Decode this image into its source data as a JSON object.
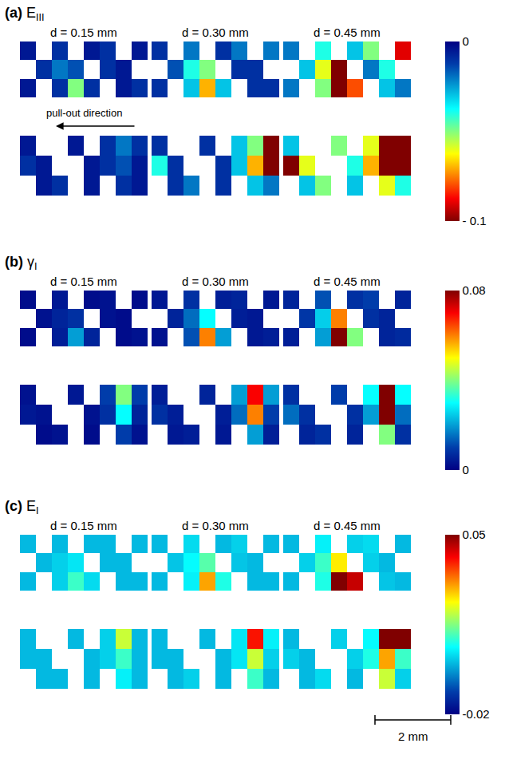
{
  "chart_data": [
    {
      "type": "heatmap",
      "panel": "(a)",
      "symbol": "E",
      "subscript": "III",
      "color": "jet_r",
      "tick_labels": false,
      "columns": [
        "d = 0.15 mm",
        "d = 0.30 mm",
        "d = 0.45 mm"
      ],
      "zlim": [
        -0.1,
        0
      ],
      "zticks": [
        0,
        {
          "value": -0.1,
          "label": "- 0.1"
        }
      ],
      "cells": [
        [
          [
            [
              -0.005,
              null,
              -0.01,
              null,
              -0.005,
              -0.01,
              null,
              -0.005
            ],
            [
              null,
              -0.01,
              -0.02,
              -0.015,
              null,
              -0.01,
              -0.005,
              null
            ],
            [
              -0.005,
              null,
              -0.01,
              -0.05,
              -0.01,
              null,
              -0.005,
              -0.01
            ]
          ],
          [
            [
              -0.01,
              null,
              -0.02,
              null,
              -0.01,
              -0.02,
              null,
              -0.02
            ],
            [
              null,
              -0.015,
              -0.04,
              -0.05,
              null,
              -0.01,
              -0.01,
              null
            ],
            [
              -0.01,
              null,
              -0.03,
              -0.07,
              -0.03,
              null,
              -0.01,
              -0.01
            ]
          ],
          [
            [
              -0.02,
              null,
              -0.04,
              null,
              -0.03,
              -0.05,
              null,
              -0.09
            ],
            [
              null,
              -0.03,
              -0.06,
              -0.1,
              null,
              -0.02,
              -0.04,
              null
            ],
            [
              -0.02,
              null,
              -0.05,
              -0.1,
              -0.08,
              null,
              -0.03,
              -0.02
            ]
          ]
        ],
        [
          [
            [
              -0.005,
              null,
              null,
              -0.005,
              null,
              -0.01,
              -0.02,
              -0.01
            ],
            [
              -0.01,
              -0.005,
              null,
              null,
              -0.005,
              -0.01,
              -0.015,
              -0.005
            ],
            [
              null,
              -0.005,
              -0.01,
              null,
              -0.005,
              null,
              -0.01,
              -0.005
            ]
          ],
          [
            [
              -0.01,
              null,
              null,
              -0.01,
              null,
              -0.03,
              -0.05,
              -0.1
            ],
            [
              -0.04,
              -0.01,
              null,
              null,
              -0.01,
              -0.03,
              -0.07,
              -0.1
            ],
            [
              null,
              -0.01,
              -0.02,
              null,
              -0.01,
              null,
              -0.03,
              -0.02
            ]
          ],
          [
            [
              -0.03,
              null,
              null,
              -0.05,
              null,
              -0.06,
              -0.1,
              -0.1
            ],
            [
              -0.1,
              -0.06,
              null,
              null,
              -0.04,
              -0.07,
              -0.1,
              -0.1
            ],
            [
              null,
              -0.03,
              -0.05,
              null,
              -0.03,
              null,
              -0.06,
              -0.04
            ]
          ]
        ]
      ]
    },
    {
      "type": "heatmap",
      "panel": "(b)",
      "symbol": "γ",
      "subscript": "I",
      "color": "jet",
      "tick_labels": false,
      "columns": [
        "d = 0.15 mm",
        "d = 0.30 mm",
        "d = 0.45 mm"
      ],
      "zlim": [
        0,
        0.08
      ],
      "zticks": [
        0.08,
        0
      ],
      "cells": [
        [
          [
            [
              0.002,
              null,
              0.004,
              null,
              0.002,
              0.003,
              null,
              0.002
            ],
            [
              null,
              0.003,
              0.006,
              0.008,
              null,
              0.003,
              0.002,
              null
            ],
            [
              0.002,
              null,
              0.005,
              0.02,
              0.006,
              null,
              0.002,
              0.003
            ]
          ],
          [
            [
              0.004,
              null,
              0.008,
              null,
              0.005,
              0.006,
              null,
              0.004
            ],
            [
              null,
              0.006,
              0.015,
              0.03,
              null,
              0.005,
              0.004,
              null
            ],
            [
              0.003,
              null,
              0.012,
              0.06,
              0.02,
              null,
              0.004,
              0.005
            ]
          ],
          [
            [
              0.006,
              null,
              0.012,
              null,
              0.008,
              0.01,
              null,
              0.006
            ],
            [
              null,
              0.009,
              0.025,
              0.06,
              null,
              0.008,
              0.006,
              null
            ],
            [
              0.005,
              null,
              0.02,
              0.08,
              0.04,
              null,
              0.006,
              0.007
            ]
          ]
        ],
        [
          [
            [
              0.003,
              null,
              null,
              0.004,
              null,
              0.01,
              0.04,
              0.01
            ],
            [
              0.004,
              0.003,
              null,
              null,
              0.003,
              0.008,
              0.03,
              0.006
            ],
            [
              null,
              0.002,
              0.003,
              null,
              0.002,
              null,
              0.01,
              0.003
            ]
          ],
          [
            [
              0.005,
              null,
              null,
              0.006,
              null,
              0.02,
              0.07,
              0.02
            ],
            [
              0.008,
              0.005,
              null,
              null,
              0.005,
              0.015,
              0.06,
              0.01
            ],
            [
              null,
              0.004,
              0.005,
              null,
              0.004,
              null,
              0.02,
              0.005
            ]
          ],
          [
            [
              0.008,
              null,
              null,
              0.01,
              null,
              0.03,
              0.08,
              0.03
            ],
            [
              0.015,
              0.008,
              null,
              null,
              0.008,
              0.02,
              0.08,
              0.015
            ],
            [
              null,
              0.006,
              0.008,
              null,
              0.006,
              null,
              0.04,
              0.008
            ]
          ]
        ]
      ]
    },
    {
      "type": "heatmap",
      "panel": "(c)",
      "symbol": "E",
      "subscript": "I",
      "color": "jet",
      "tick_labels": false,
      "columns": [
        "d = 0.15 mm",
        "d = 0.30 mm",
        "d = 0.45 mm"
      ],
      "zlim": [
        -0.02,
        0.05
      ],
      "zticks": [
        0.05,
        -0.02
      ],
      "cells": [
        [
          [
            [
              0.0,
              null,
              0.0,
              null,
              0.0,
              0.0,
              null,
              0.0
            ],
            [
              null,
              0.0,
              0.002,
              0.004,
              null,
              0.0,
              0.0,
              null
            ],
            [
              0.0,
              null,
              0.002,
              0.01,
              0.003,
              null,
              0.0,
              0.0
            ]
          ],
          [
            [
              0.0,
              null,
              0.003,
              null,
              0.0,
              0.002,
              null,
              0.0
            ],
            [
              null,
              0.001,
              0.006,
              0.012,
              null,
              0.001,
              0.0,
              null
            ],
            [
              0.0,
              null,
              0.005,
              0.03,
              0.008,
              null,
              0.0,
              0.0
            ]
          ],
          [
            [
              0.0,
              null,
              0.005,
              null,
              0.002,
              0.003,
              null,
              0.0
            ],
            [
              null,
              0.002,
              0.01,
              0.025,
              null,
              0.002,
              0.0,
              null
            ],
            [
              0.0,
              null,
              0.008,
              0.05,
              0.045,
              null,
              0.001,
              0.0
            ]
          ]
        ],
        [
          [
            [
              0.0,
              null,
              null,
              0.0,
              null,
              0.002,
              0.02,
              0.0
            ],
            [
              0.0,
              0.0,
              null,
              null,
              0.0,
              0.002,
              0.01,
              0.0
            ],
            [
              null,
              0.0,
              0.0,
              null,
              0.0,
              null,
              0.005,
              0.0
            ]
          ],
          [
            [
              0.0,
              null,
              null,
              0.0,
              null,
              0.004,
              0.04,
              0.005
            ],
            [
              0.0,
              0.0,
              null,
              null,
              0.0,
              0.004,
              0.02,
              0.002
            ],
            [
              null,
              0.0,
              0.002,
              null,
              0.0,
              null,
              0.01,
              0.0
            ]
          ],
          [
            [
              0.0,
              null,
              null,
              0.002,
              null,
              0.006,
              0.05,
              0.05
            ],
            [
              0.002,
              0.0,
              null,
              null,
              0.002,
              0.008,
              0.03,
              0.01
            ],
            [
              null,
              0.0,
              0.003,
              null,
              0.0,
              null,
              0.02,
              0.002
            ]
          ]
        ]
      ]
    }
  ],
  "annotation": "pull-out direction",
  "scale_bar": "2 mm"
}
